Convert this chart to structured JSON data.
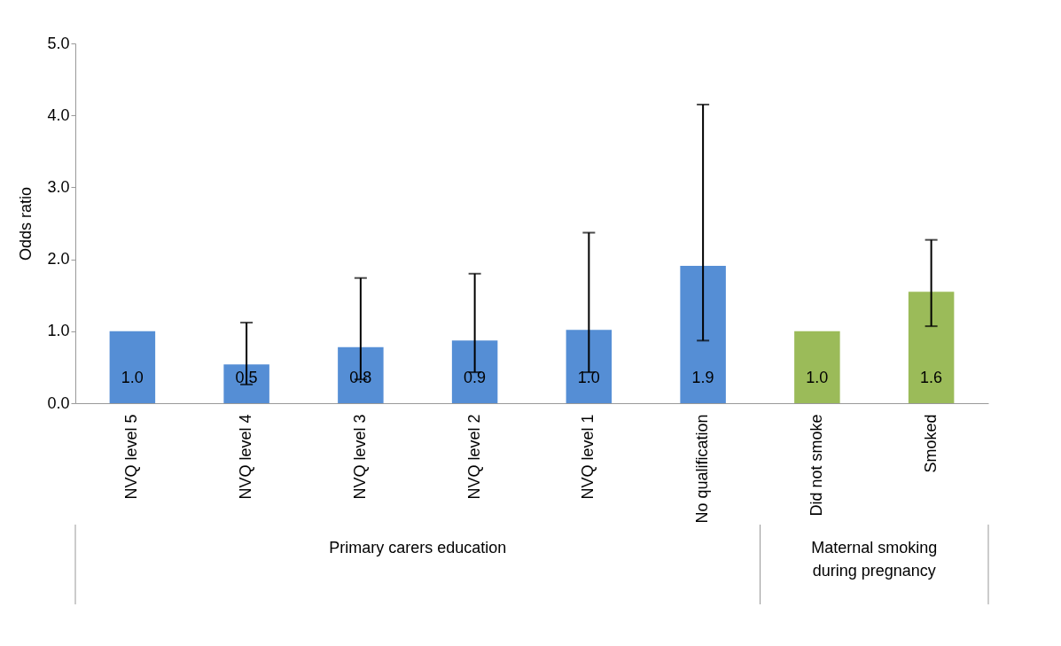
{
  "chart_data": {
    "type": "bar",
    "ylabel": "Odds ratio",
    "categories": [
      "NVQ level 5",
      "NVQ level 4",
      "NVQ level 3",
      "NVQ level 2",
      "NVQ level 1",
      "No qualification",
      "Did not smoke",
      "Smoked"
    ],
    "values": [
      1.0,
      0.54,
      0.78,
      0.87,
      1.02,
      1.91,
      1.0,
      1.55
    ],
    "value_labels": [
      "1.0",
      "0.5",
      "0.8",
      "0.9",
      "1.0",
      "1.9",
      "1.0",
      "1.6"
    ],
    "errors": [
      null,
      [
        0.26,
        1.12
      ],
      [
        0.33,
        1.74
      ],
      [
        0.43,
        1.8
      ],
      [
        0.43,
        2.37
      ],
      [
        0.87,
        4.15
      ],
      null,
      [
        1.07,
        2.27
      ]
    ],
    "colors": [
      "#558ed5",
      "#558ed5",
      "#558ed5",
      "#558ed5",
      "#558ed5",
      "#558ed5",
      "#9bbb59",
      "#9bbb59"
    ],
    "ylim": [
      0,
      5
    ],
    "yticks": [
      {
        "value": 0,
        "label": "0.0"
      },
      {
        "value": 1,
        "label": "1.0"
      },
      {
        "value": 2,
        "label": "2.0"
      },
      {
        "value": 3,
        "label": "3.0"
      },
      {
        "value": 4,
        "label": "4.0"
      },
      {
        "value": 5,
        "label": "5.0"
      }
    ],
    "annotations": [
      "Primary carers education",
      "Maternal smoking during pregnancy"
    ],
    "grid": false
  }
}
